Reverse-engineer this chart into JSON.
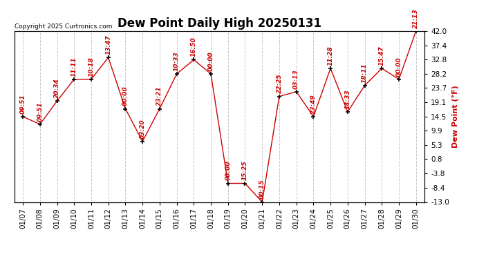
{
  "title": "Dew Point Daily High 20250131",
  "copyright": "Copyright 2025 Curtronics.com",
  "ylabel": "Dew Point (°F)",
  "dates": [
    "01/07",
    "01/08",
    "01/09",
    "01/10",
    "01/11",
    "01/12",
    "01/13",
    "01/14",
    "01/15",
    "01/16",
    "01/17",
    "01/18",
    "01/19",
    "01/20",
    "01/21",
    "01/22",
    "01/23",
    "01/24",
    "01/25",
    "01/26",
    "01/27",
    "01/28",
    "01/29",
    "01/30"
  ],
  "values": [
    14.5,
    12.0,
    19.5,
    26.5,
    26.5,
    33.5,
    17.0,
    6.5,
    17.0,
    28.2,
    32.8,
    28.2,
    -7.0,
    -7.0,
    -13.0,
    21.0,
    22.5,
    14.5,
    30.0,
    16.0,
    24.5,
    30.0,
    26.5,
    42.0
  ],
  "times": [
    "09:51",
    "09:51",
    "20:34",
    "11:11",
    "10:18",
    "13:47",
    "00:00",
    "03:20",
    "23:21",
    "10:33",
    "16:50",
    "00:00",
    "00:00",
    "15:25",
    "00:15",
    "22:25",
    "03:13",
    "23:49",
    "11:28",
    "14:33",
    "18:11",
    "15:47",
    "00:00",
    "21:13"
  ],
  "ylim": [
    -13.0,
    42.0
  ],
  "yticks": [
    -13.0,
    -8.4,
    -3.8,
    0.8,
    5.3,
    9.9,
    14.5,
    19.1,
    23.7,
    28.2,
    32.8,
    37.4,
    42.0
  ],
  "line_color": "#cc0000",
  "marker_color": "black",
  "bg_color": "white",
  "grid_color": "#c8c8c8",
  "title_fontsize": 12,
  "tick_fontsize": 7.5,
  "time_fontsize": 6.5,
  "copyright_fontsize": 6.5,
  "ylabel_fontsize": 8
}
